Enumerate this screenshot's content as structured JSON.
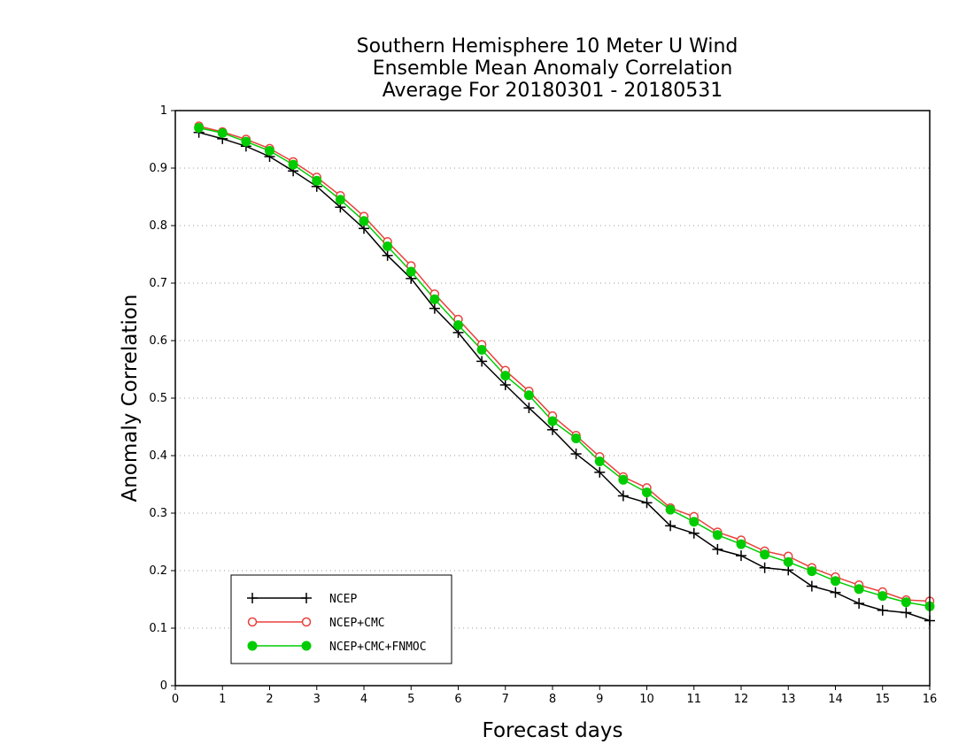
{
  "chart_data": {
    "type": "line",
    "title": [
      "Southern Hemisphere 10 Meter U Wind",
      "Ensemble Mean Anomaly Correlation",
      "Average For 20180301 - 20180531"
    ],
    "xlabel": "Forecast days",
    "ylabel": "Anomaly Correlation",
    "xlim": [
      0,
      16
    ],
    "ylim": [
      0,
      1
    ],
    "xticks": [
      "0",
      "1",
      "2",
      "3",
      "4",
      "5",
      "6",
      "7",
      "8",
      "9",
      "10",
      "11",
      "12",
      "13",
      "14",
      "15",
      "16"
    ],
    "yticks": [
      "0",
      "0.1",
      "0.2",
      "0.3",
      "0.4",
      "0.5",
      "0.6",
      "0.7",
      "0.8",
      "0.9",
      "1"
    ],
    "grid": "horizontal dotted",
    "legend_position": "bottom-left",
    "x": [
      0.5,
      1,
      1.5,
      2,
      2.5,
      3,
      3.5,
      4,
      4.5,
      5,
      5.5,
      6,
      6.5,
      7,
      7.5,
      8,
      8.5,
      9,
      9.5,
      10,
      10.5,
      11,
      11.5,
      12,
      12.5,
      13,
      13.5,
      14,
      14.5,
      15,
      15.5,
      16
    ],
    "series": [
      {
        "name": "NCEP",
        "color": "#000000",
        "marker": "plus",
        "values": [
          0.962,
          0.951,
          0.938,
          0.92,
          0.895,
          0.868,
          0.832,
          0.795,
          0.748,
          0.708,
          0.656,
          0.614,
          0.564,
          0.523,
          0.483,
          0.445,
          0.403,
          0.371,
          0.33,
          0.318,
          0.278,
          0.265,
          0.237,
          0.226,
          0.205,
          0.201,
          0.173,
          0.162,
          0.143,
          0.131,
          0.127,
          0.113
        ]
      },
      {
        "name": "NCEP+CMC",
        "color": "#e8413c",
        "marker": "open-circle",
        "values": [
          0.973,
          0.963,
          0.95,
          0.934,
          0.911,
          0.884,
          0.852,
          0.816,
          0.772,
          0.73,
          0.681,
          0.637,
          0.593,
          0.548,
          0.512,
          0.469,
          0.435,
          0.398,
          0.363,
          0.344,
          0.309,
          0.294,
          0.267,
          0.253,
          0.234,
          0.225,
          0.205,
          0.189,
          0.175,
          0.163,
          0.149,
          0.147
        ]
      },
      {
        "name": "NCEP+CMC+FNMOC",
        "color": "#00cc00",
        "marker": "filled-circle",
        "values": [
          0.97,
          0.961,
          0.946,
          0.93,
          0.906,
          0.878,
          0.845,
          0.808,
          0.764,
          0.72,
          0.672,
          0.627,
          0.584,
          0.539,
          0.505,
          0.46,
          0.43,
          0.39,
          0.358,
          0.336,
          0.306,
          0.285,
          0.262,
          0.246,
          0.228,
          0.215,
          0.199,
          0.182,
          0.168,
          0.156,
          0.145,
          0.138
        ]
      }
    ]
  }
}
